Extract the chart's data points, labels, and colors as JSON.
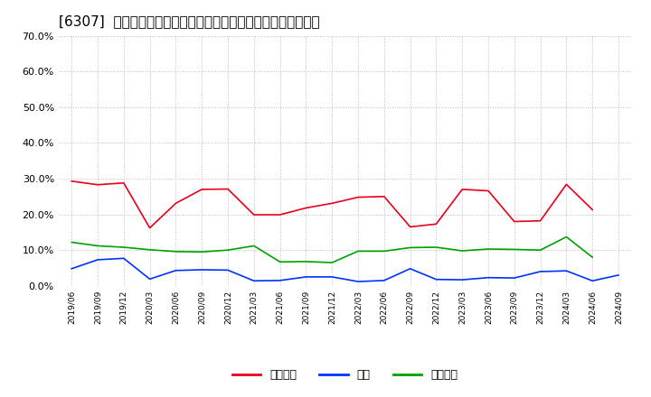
{
  "title": "[6307]  売上債権、在庫、買入債務の総資産に対する比率の推移",
  "x_labels": [
    "2019/06",
    "2019/09",
    "2019/12",
    "2020/03",
    "2020/06",
    "2020/09",
    "2020/12",
    "2021/03",
    "2021/06",
    "2021/09",
    "2021/12",
    "2022/03",
    "2022/06",
    "2022/09",
    "2022/12",
    "2023/03",
    "2023/06",
    "2023/09",
    "2023/12",
    "2024/03",
    "2024/06",
    "2024/09"
  ],
  "uriken": [
    0.293,
    0.283,
    0.288,
    0.162,
    0.231,
    0.27,
    0.271,
    0.199,
    0.199,
    0.218,
    0.231,
    0.248,
    0.25,
    0.165,
    0.173,
    0.27,
    0.266,
    0.18,
    0.182,
    0.284,
    0.213,
    null
  ],
  "zaiko": [
    0.048,
    0.073,
    0.077,
    0.019,
    0.043,
    0.045,
    0.044,
    0.014,
    0.015,
    0.025,
    0.025,
    0.012,
    0.015,
    0.048,
    0.018,
    0.017,
    0.023,
    0.022,
    0.04,
    0.042,
    0.014,
    0.03
  ],
  "kaiire": [
    0.122,
    0.112,
    0.108,
    0.101,
    0.096,
    0.095,
    0.1,
    0.112,
    0.067,
    0.068,
    0.065,
    0.097,
    0.097,
    0.107,
    0.108,
    0.098,
    0.103,
    0.102,
    0.1,
    0.137,
    0.08,
    null
  ],
  "uriken_color": "#e8001c",
  "zaiko_color": "#0032ff",
  "kaiire_color": "#00a000",
  "uriken_label": "売上債権",
  "zaiko_label": "在庫",
  "kaiire_label": "買入債務",
  "ylim": [
    0.0,
    0.7
  ],
  "yticks": [
    0.0,
    0.1,
    0.2,
    0.3,
    0.4,
    0.5,
    0.6,
    0.7
  ],
  "background_color": "#ffffff",
  "grid_color": "#aaaaaa",
  "title_fontsize": 11
}
